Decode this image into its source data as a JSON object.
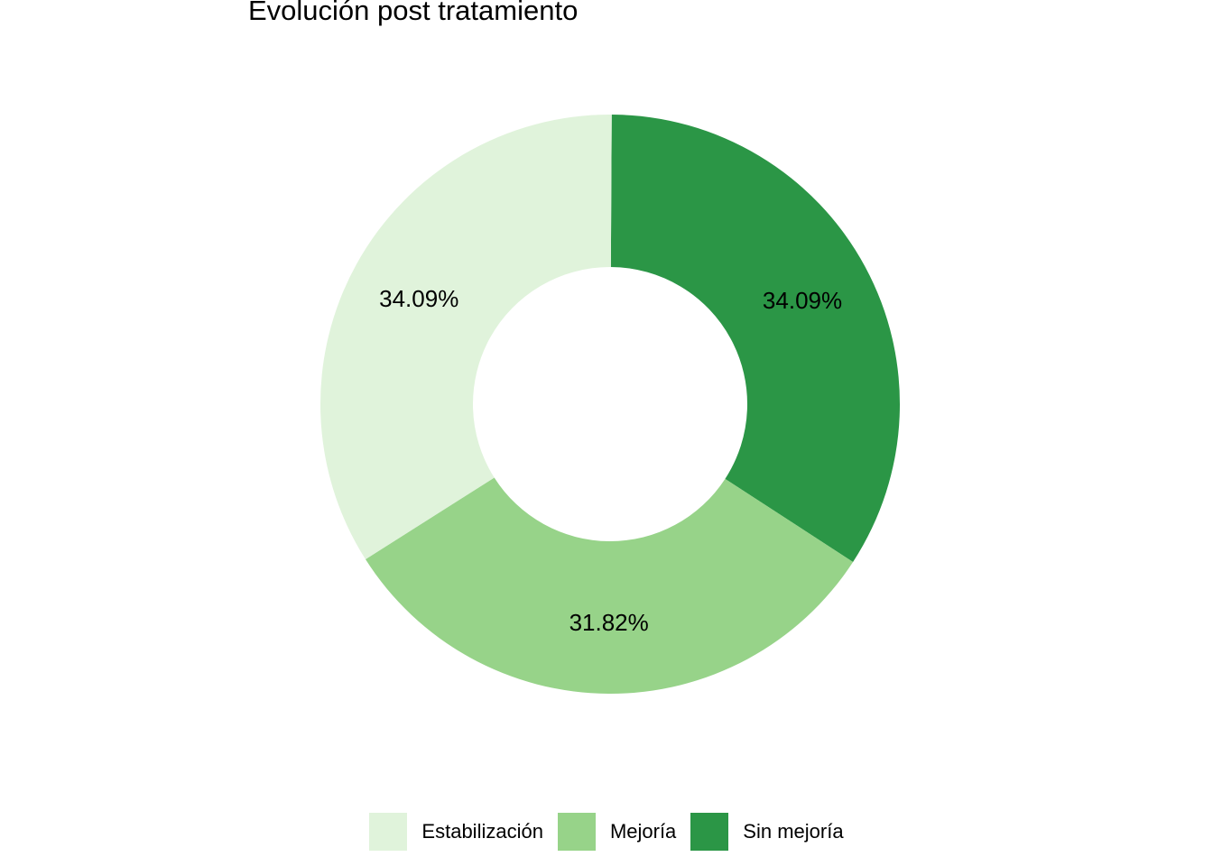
{
  "chart_data": {
    "type": "pie",
    "variant": "donut",
    "title": "Evolución post tratamiento",
    "categories": [
      "Estabilización",
      "Mejoría",
      "Sin mejoría"
    ],
    "values": [
      34.09,
      31.82,
      34.09
    ],
    "value_labels": [
      "34.09%",
      "31.82%",
      "34.09%"
    ],
    "colors": [
      "#e0f3db",
      "#97d389",
      "#2b9646"
    ],
    "slice_order_clockwise_from_top": [
      "Sin mejoría",
      "Mejoría",
      "Estabilización"
    ],
    "legend_position": "bottom",
    "grid": false
  }
}
